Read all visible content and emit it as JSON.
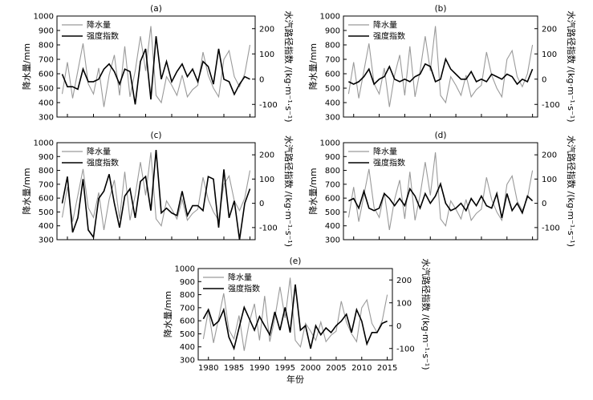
{
  "x_axis": {
    "label": "年份",
    "ticks": [
      1980,
      1985,
      1990,
      1995,
      2000,
      2005,
      2010,
      2015
    ],
    "range": [
      1978,
      2016
    ]
  },
  "y_left": {
    "label": "降水量/mm",
    "ticks": [
      300,
      400,
      500,
      600,
      700,
      800,
      900,
      1000
    ],
    "range": [
      300,
      1000
    ]
  },
  "y_right": {
    "label": "水汽路径指数 /(kg·m⁻¹·s⁻¹)",
    "ticks": [
      -100,
      0,
      100,
      200
    ],
    "tick_labels": [
      "-100",
      "0",
      "100",
      "200"
    ],
    "range": [
      -150,
      250
    ]
  },
  "legend": {
    "precip": "降水量",
    "index": "强度指数"
  },
  "colors": {
    "precip": "#9a9a9a",
    "index": "#000000"
  },
  "chart_data": {
    "type": "line",
    "x": [
      1979,
      1980,
      1981,
      1982,
      1983,
      1984,
      1985,
      1986,
      1987,
      1988,
      1989,
      1990,
      1991,
      1992,
      1993,
      1994,
      1995,
      1996,
      1997,
      1998,
      1999,
      2000,
      2001,
      2002,
      2003,
      2004,
      2005,
      2006,
      2007,
      2008,
      2009,
      2010,
      2011,
      2012,
      2013,
      2014,
      2015
    ],
    "precip": [
      460,
      680,
      430,
      620,
      810,
      530,
      460,
      640,
      370,
      590,
      730,
      450,
      790,
      440,
      620,
      860,
      620,
      930,
      450,
      400,
      580,
      520,
      450,
      590,
      440,
      490,
      520,
      750,
      590,
      500,
      440,
      700,
      760,
      580,
      510,
      600,
      800
    ],
    "panels": [
      {
        "label": "(a)",
        "index": [
          20,
          -30,
          -30,
          -40,
          40,
          -10,
          -10,
          0,
          40,
          60,
          30,
          -20,
          40,
          30,
          -100,
          70,
          120,
          -80,
          170,
          0,
          70,
          -10,
          30,
          60,
          10,
          40,
          -10,
          70,
          50,
          -20,
          120,
          0,
          -10,
          -60,
          -20,
          10,
          0
        ]
      },
      {
        "label": "(b)",
        "index": [
          -10,
          -20,
          -10,
          10,
          40,
          -20,
          0,
          10,
          50,
          0,
          -10,
          0,
          -10,
          10,
          20,
          60,
          50,
          -10,
          0,
          80,
          40,
          20,
          0,
          0,
          30,
          -10,
          0,
          -10,
          20,
          10,
          0,
          20,
          10,
          -20,
          0,
          -10,
          40
        ]
      },
      {
        "label": "(c)",
        "index": [
          0,
          110,
          -120,
          -60,
          100,
          -110,
          -140,
          20,
          50,
          120,
          0,
          -100,
          30,
          60,
          -60,
          90,
          110,
          -30,
          220,
          -40,
          -20,
          -40,
          -50,
          50,
          -50,
          -10,
          -10,
          -30,
          110,
          100,
          -100,
          140,
          -60,
          10,
          -150,
          0,
          60
        ]
      },
      {
        "label": "(d)",
        "index": [
          10,
          20,
          -20,
          50,
          -20,
          -30,
          -20,
          40,
          20,
          -10,
          20,
          -10,
          60,
          30,
          -20,
          40,
          0,
          30,
          80,
          0,
          -30,
          -20,
          0,
          -30,
          20,
          -10,
          30,
          -10,
          -20,
          40,
          -60,
          40,
          -30,
          0,
          -40,
          30,
          10
        ]
      },
      {
        "label": "(e)",
        "index": [
          30,
          70,
          0,
          20,
          70,
          -50,
          -100,
          -10,
          80,
          30,
          -20,
          40,
          0,
          -40,
          60,
          -20,
          80,
          -30,
          180,
          -20,
          0,
          -100,
          0,
          -40,
          -10,
          -30,
          0,
          20,
          50,
          -30,
          70,
          20,
          -80,
          -30,
          -30,
          10,
          20
        ]
      }
    ]
  }
}
